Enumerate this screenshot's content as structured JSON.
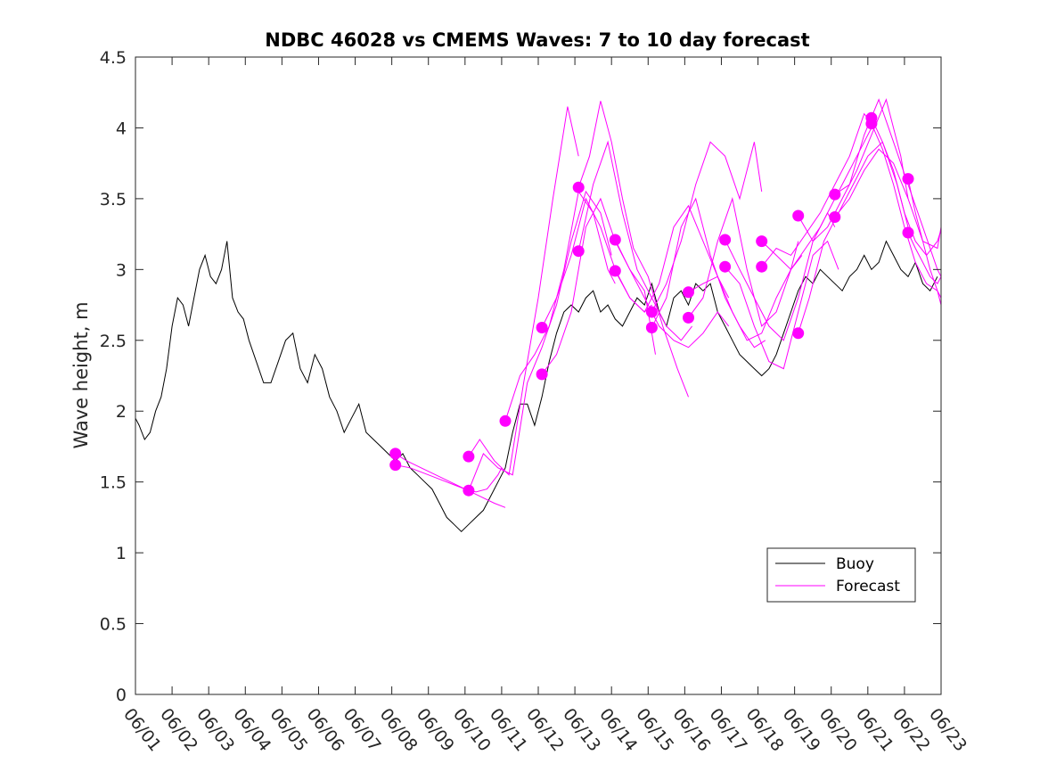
{
  "chart_data": {
    "type": "line",
    "title": "NDBC 46028 vs CMEMS Waves: 7 to 10 day forecast",
    "xlabel": "",
    "ylabel": "Wave height, m",
    "xlim": [
      "06/01",
      "06/23"
    ],
    "ylim": [
      0,
      4.5
    ],
    "x_ticks": [
      "06/01",
      "06/02",
      "06/03",
      "06/04",
      "06/05",
      "06/06",
      "06/07",
      "06/08",
      "06/09",
      "06/10",
      "06/11",
      "06/12",
      "06/13",
      "06/14",
      "06/15",
      "06/16",
      "06/17",
      "06/18",
      "06/19",
      "06/20",
      "06/21",
      "06/22",
      "06/23"
    ],
    "y_ticks": [
      "0",
      "0.5",
      "1",
      "1.5",
      "2",
      "2.5",
      "3",
      "3.5",
      "4",
      "4.5"
    ],
    "legend": {
      "placement": "bottom-right",
      "entries": [
        "Buoy",
        "Forecast"
      ]
    },
    "colors": {
      "buoy": "#000000",
      "forecast": "#ff00ff"
    },
    "series": [
      {
        "name": "Buoy",
        "x_day": [
          0.0,
          0.1,
          0.25,
          0.4,
          0.55,
          0.7,
          0.85,
          1.0,
          1.15,
          1.3,
          1.45,
          1.6,
          1.75,
          1.9,
          2.05,
          2.2,
          2.35,
          2.5,
          2.65,
          2.8,
          2.95,
          3.1,
          3.3,
          3.5,
          3.7,
          3.9,
          4.1,
          4.3,
          4.5,
          4.7,
          4.9,
          5.1,
          5.3,
          5.5,
          5.7,
          5.9,
          6.1,
          6.3,
          6.5,
          6.7,
          6.9,
          7.1,
          7.3,
          7.5,
          7.7,
          7.9,
          8.1,
          8.3,
          8.5,
          8.7,
          8.9,
          9.1,
          9.3,
          9.5,
          9.7,
          9.9,
          10.1,
          10.3,
          10.5,
          10.7,
          10.9,
          11.1,
          11.3,
          11.5,
          11.7,
          11.9,
          12.1,
          12.3,
          12.5,
          12.7,
          12.9,
          13.1,
          13.3,
          13.5,
          13.7,
          13.9,
          14.1,
          14.3,
          14.5,
          14.7,
          14.9,
          15.1,
          15.3,
          15.5,
          15.7,
          15.9,
          16.1,
          16.3,
          16.5,
          16.7,
          16.9,
          17.1,
          17.3,
          17.5,
          17.7,
          17.9,
          18.1,
          18.3,
          18.5,
          18.7,
          18.9,
          19.1,
          19.3,
          19.5,
          19.7,
          19.9,
          20.1,
          20.3,
          20.5,
          20.7,
          20.9,
          21.1,
          21.3,
          21.5,
          21.7,
          21.9
        ],
        "values": [
          1.95,
          1.9,
          1.8,
          1.85,
          2.0,
          2.1,
          2.3,
          2.6,
          2.8,
          2.75,
          2.6,
          2.8,
          3.0,
          3.1,
          2.95,
          2.9,
          3.0,
          3.2,
          2.8,
          2.7,
          2.65,
          2.5,
          2.35,
          2.2,
          2.2,
          2.35,
          2.5,
          2.55,
          2.3,
          2.2,
          2.4,
          2.3,
          2.1,
          2.0,
          1.85,
          1.95,
          2.05,
          1.85,
          1.8,
          1.75,
          1.7,
          1.65,
          1.7,
          1.6,
          1.55,
          1.5,
          1.45,
          1.35,
          1.25,
          1.2,
          1.15,
          1.2,
          1.25,
          1.3,
          1.4,
          1.5,
          1.6,
          1.85,
          2.05,
          2.05,
          1.9,
          2.1,
          2.35,
          2.55,
          2.7,
          2.75,
          2.7,
          2.8,
          2.85,
          2.7,
          2.75,
          2.65,
          2.6,
          2.7,
          2.8,
          2.75,
          2.9,
          2.7,
          2.6,
          2.8,
          2.85,
          2.75,
          2.9,
          2.85,
          2.9,
          2.7,
          2.6,
          2.5,
          2.4,
          2.35,
          2.3,
          2.25,
          2.3,
          2.4,
          2.55,
          2.7,
          2.85,
          2.95,
          2.9,
          3.0,
          2.95,
          2.9,
          2.85,
          2.95,
          3.0,
          3.1,
          3.0,
          3.05,
          3.2,
          3.1,
          3.0,
          2.95,
          3.05,
          2.9,
          2.85,
          2.95
        ]
      },
      {
        "name": "Forecast",
        "runs": [
          {
            "x_day": [
              7.1,
              7.4,
              7.8,
              8.2,
              8.6,
              9.0,
              9.4,
              9.8,
              10.1
            ],
            "values": [
              1.7,
              1.65,
              1.6,
              1.55,
              1.5,
              1.45,
              1.4,
              1.35,
              1.32
            ]
          },
          {
            "x_day": [
              7.1,
              7.5,
              8.0,
              8.5,
              9.0,
              9.3,
              9.6,
              9.9,
              10.0
            ],
            "values": [
              1.62,
              1.6,
              1.55,
              1.5,
              1.45,
              1.43,
              1.45,
              1.55,
              1.6
            ]
          },
          {
            "x_day": [
              9.1,
              9.4,
              9.8,
              10.2,
              10.6,
              11.0,
              11.4,
              11.8,
              12.1
            ],
            "values": [
              1.68,
              1.8,
              1.65,
              1.55,
              2.2,
              2.8,
              3.5,
              4.15,
              3.8
            ]
          },
          {
            "x_day": [
              9.1,
              9.5,
              9.9,
              10.3,
              10.7,
              11.1,
              11.5,
              11.9,
              12.3,
              12.7,
              13.0
            ],
            "values": [
              1.44,
              1.7,
              1.6,
              1.55,
              2.2,
              2.45,
              2.75,
              3.2,
              3.55,
              3.4,
              3.1
            ]
          },
          {
            "x_day": [
              10.1,
              10.5,
              10.9,
              11.3,
              11.7,
              12.1,
              12.5,
              12.9,
              13.1
            ],
            "values": [
              1.93,
              2.25,
              2.4,
              2.6,
              3.0,
              3.55,
              3.4,
              3.0,
              2.9
            ]
          },
          {
            "x_day": [
              11.1,
              11.5,
              11.9,
              12.3,
              12.7,
              13.1,
              13.5,
              13.9,
              14.1
            ],
            "values": [
              2.59,
              2.8,
              3.1,
              3.5,
              3.3,
              3.0,
              2.8,
              2.7,
              2.75
            ]
          },
          {
            "x_day": [
              11.1,
              11.5,
              11.9,
              12.3,
              12.7,
              13.1,
              13.5,
              13.9,
              14.2
            ],
            "values": [
              2.26,
              2.4,
              2.7,
              3.3,
              3.5,
              3.2,
              3.0,
              2.85,
              2.4
            ]
          },
          {
            "x_day": [
              12.1,
              12.4,
              12.7,
              13.0,
              13.3,
              13.6,
              14.0,
              14.4,
              14.8,
              15.1
            ],
            "values": [
              3.58,
              3.8,
              4.19,
              3.9,
              3.5,
              3.15,
              2.95,
              2.6,
              2.3,
              2.1
            ]
          },
          {
            "x_day": [
              12.1,
              12.5,
              12.9,
              13.3,
              13.7,
              14.1,
              14.5,
              14.9,
              15.2
            ],
            "values": [
              3.13,
              3.6,
              3.9,
              3.4,
              3.0,
              2.8,
              2.6,
              2.5,
              2.6
            ]
          },
          {
            "x_day": [
              13.1,
              13.5,
              13.9,
              14.3,
              14.7,
              15.1,
              15.5,
              15.9,
              16.2
            ],
            "values": [
              3.21,
              3.0,
              2.8,
              2.6,
              2.5,
              2.45,
              2.55,
              2.7,
              2.6
            ]
          },
          {
            "x_day": [
              13.1,
              13.5,
              13.9,
              14.3,
              14.7,
              15.1,
              15.5,
              15.9,
              16.2
            ],
            "values": [
              2.99,
              2.8,
              2.7,
              2.9,
              3.3,
              3.45,
              3.2,
              2.95,
              2.8
            ]
          },
          {
            "x_day": [
              14.1,
              14.5,
              14.9,
              15.3,
              15.7,
              16.1,
              16.5,
              16.9,
              17.1
            ],
            "values": [
              2.7,
              2.9,
              3.2,
              3.6,
              3.9,
              3.8,
              3.5,
              3.9,
              3.55
            ]
          },
          {
            "x_day": [
              14.1,
              14.5,
              14.9,
              15.3,
              15.7,
              16.1,
              16.5,
              16.9,
              17.2
            ],
            "values": [
              2.59,
              2.8,
              3.3,
              3.5,
              3.1,
              2.8,
              2.6,
              2.45,
              2.5
            ]
          },
          {
            "x_day": [
              15.1,
              15.5,
              15.9,
              16.3,
              16.7,
              17.1,
              17.5,
              17.9,
              18.1
            ],
            "values": [
              2.66,
              2.8,
              3.2,
              3.5,
              3.0,
              2.6,
              2.7,
              3.0,
              3.2
            ]
          },
          {
            "x_day": [
              15.1,
              15.5,
              15.9,
              16.3,
              16.7,
              17.1,
              17.5,
              17.9,
              18.2
            ],
            "values": [
              2.84,
              2.9,
              2.95,
              2.7,
              2.5,
              2.55,
              2.8,
              3.0,
              3.1
            ]
          },
          {
            "x_day": [
              16.1,
              16.5,
              16.9,
              17.3,
              17.7,
              18.1,
              18.5,
              18.9,
              19.1
            ],
            "values": [
              3.21,
              3.0,
              2.8,
              2.6,
              2.5,
              2.8,
              3.2,
              3.4,
              3.3
            ]
          },
          {
            "x_day": [
              16.1,
              16.5,
              16.9,
              17.3,
              17.7,
              18.1,
              18.5,
              18.9,
              19.2
            ],
            "values": [
              3.02,
              2.9,
              2.6,
              2.35,
              2.3,
              2.7,
              3.1,
              3.2,
              3.0
            ]
          },
          {
            "x_day": [
              17.1,
              17.5,
              17.9,
              18.3,
              18.7,
              19.1,
              19.5,
              19.9,
              20.1
            ],
            "values": [
              3.2,
              3.1,
              3.0,
              3.15,
              3.3,
              3.5,
              3.7,
              3.9,
              4.0
            ]
          },
          {
            "x_day": [
              17.1,
              17.5,
              17.9,
              18.3,
              18.7,
              19.1,
              19.5,
              19.9,
              20.2
            ],
            "values": [
              3.02,
              3.15,
              3.1,
              3.25,
              3.4,
              3.6,
              3.8,
              4.1,
              4.0
            ]
          },
          {
            "x_day": [
              18.1,
              18.5,
              18.9,
              19.3,
              19.7,
              20.1,
              20.5,
              20.9,
              21.1
            ],
            "values": [
              3.38,
              3.2,
              3.3,
              3.5,
              3.7,
              3.95,
              4.2,
              3.8,
              3.5
            ]
          },
          {
            "x_day": [
              18.1,
              18.4,
              18.8,
              19.2,
              19.6,
              20.0,
              20.4,
              20.8,
              21.1
            ],
            "values": [
              2.55,
              2.8,
              3.2,
              3.4,
              3.6,
              3.8,
              3.9,
              3.6,
              3.3
            ]
          },
          {
            "x_day": [
              19.1,
              19.5,
              19.9,
              20.3,
              20.7,
              21.1,
              21.5,
              21.9,
              22.0
            ],
            "values": [
              3.53,
              3.6,
              3.95,
              4.2,
              3.9,
              3.6,
              3.3,
              3.0,
              2.95
            ]
          },
          {
            "x_day": [
              19.1,
              19.5,
              19.9,
              20.3,
              20.7,
              21.1,
              21.5,
              21.9,
              22.0
            ],
            "values": [
              3.37,
              3.5,
              3.7,
              3.85,
              3.75,
              3.5,
              3.2,
              3.15,
              3.3
            ]
          },
          {
            "x_day": [
              20.1,
              20.4,
              20.7,
              21.0,
              21.3,
              21.6,
              21.9,
              22.0
            ],
            "values": [
              4.07,
              3.9,
              3.7,
              3.4,
              3.2,
              3.1,
              3.2,
              3.28
            ]
          },
          {
            "x_day": [
              20.1,
              20.4,
              20.7,
              21.0,
              21.3,
              21.6,
              21.9,
              22.0
            ],
            "values": [
              4.03,
              3.85,
              3.6,
              3.3,
              3.05,
              2.9,
              2.85,
              2.8
            ]
          },
          {
            "x_day": [
              21.1,
              21.3,
              21.5,
              21.7,
              21.9,
              22.0
            ],
            "values": [
              3.64,
              3.4,
              3.2,
              3.0,
              2.85,
              2.75
            ]
          },
          {
            "x_day": [
              21.1,
              21.3,
              21.5,
              21.7,
              21.9,
              22.0
            ],
            "values": [
              3.26,
              3.15,
              3.05,
              2.95,
              2.9,
              2.95
            ]
          }
        ],
        "markers": [
          {
            "x_day": 7.1,
            "value": 1.7
          },
          {
            "x_day": 7.1,
            "value": 1.62
          },
          {
            "x_day": 9.1,
            "value": 1.68
          },
          {
            "x_day": 9.1,
            "value": 1.44
          },
          {
            "x_day": 10.1,
            "value": 1.93
          },
          {
            "x_day": 11.1,
            "value": 2.59
          },
          {
            "x_day": 11.1,
            "value": 2.26
          },
          {
            "x_day": 12.1,
            "value": 3.58
          },
          {
            "x_day": 12.1,
            "value": 3.13
          },
          {
            "x_day": 13.1,
            "value": 3.21
          },
          {
            "x_day": 13.1,
            "value": 2.99
          },
          {
            "x_day": 14.1,
            "value": 2.7
          },
          {
            "x_day": 14.1,
            "value": 2.59
          },
          {
            "x_day": 15.1,
            "value": 2.84
          },
          {
            "x_day": 15.1,
            "value": 2.66
          },
          {
            "x_day": 16.1,
            "value": 3.21
          },
          {
            "x_day": 16.1,
            "value": 3.02
          },
          {
            "x_day": 17.1,
            "value": 3.2
          },
          {
            "x_day": 17.1,
            "value": 3.02
          },
          {
            "x_day": 18.1,
            "value": 3.38
          },
          {
            "x_day": 18.1,
            "value": 2.55
          },
          {
            "x_day": 19.1,
            "value": 3.53
          },
          {
            "x_day": 19.1,
            "value": 3.37
          },
          {
            "x_day": 20.1,
            "value": 4.07
          },
          {
            "x_day": 20.1,
            "value": 4.03
          },
          {
            "x_day": 21.1,
            "value": 3.64
          },
          {
            "x_day": 21.1,
            "value": 3.26
          }
        ]
      }
    ]
  }
}
